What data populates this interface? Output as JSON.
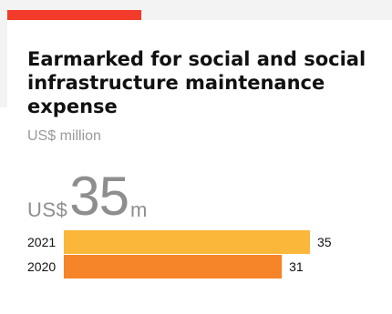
{
  "header": {
    "title": "Earmarked for social and social infrastructure maintenance expense",
    "subtitle": "US$ million",
    "headline_prefix": "US$",
    "headline_number": "35",
    "headline_suffix": "m"
  },
  "colors": {
    "accent": "#f23b2a",
    "bar_2021": "#fbb73a",
    "bar_2020": "#f58528"
  },
  "chart_data": {
    "type": "bar",
    "orientation": "horizontal",
    "categories": [
      "2021",
      "2020"
    ],
    "values": [
      35,
      31
    ],
    "value_labels": [
      "35",
      "31"
    ],
    "xlim": [
      0,
      35
    ]
  }
}
